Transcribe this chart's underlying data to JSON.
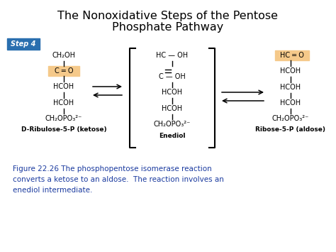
{
  "title_line1": "The Nonoxidative Steps of the Pentose",
  "title_line2": "Phosphate Pathway",
  "title_fontsize": 11.5,
  "title_color": "#000000",
  "bg_color": "#ffffff",
  "step_label": "Step 4",
  "step_bg": "#2a6faf",
  "step_text_color": "#ffffff",
  "highlight_orange": "#f5c98a",
  "figure_caption": "Figure 22.26 The phosphopentose isomerase reaction\nconverts a ketose to an aldose.  The reaction involves an\nenediol intermediate.",
  "caption_color": "#1a3a9f",
  "caption_fontsize": 7.5,
  "mol1_label": "D-Ribulose-5-P (ketose)",
  "mol2_label": "Enediol",
  "mol3_label": "Ribose-5-P (aldose)",
  "mol_label_fontsize": 6.5,
  "arrow_color": "#000000",
  "structure_color": "#000000",
  "structure_fontsize": 7.0
}
